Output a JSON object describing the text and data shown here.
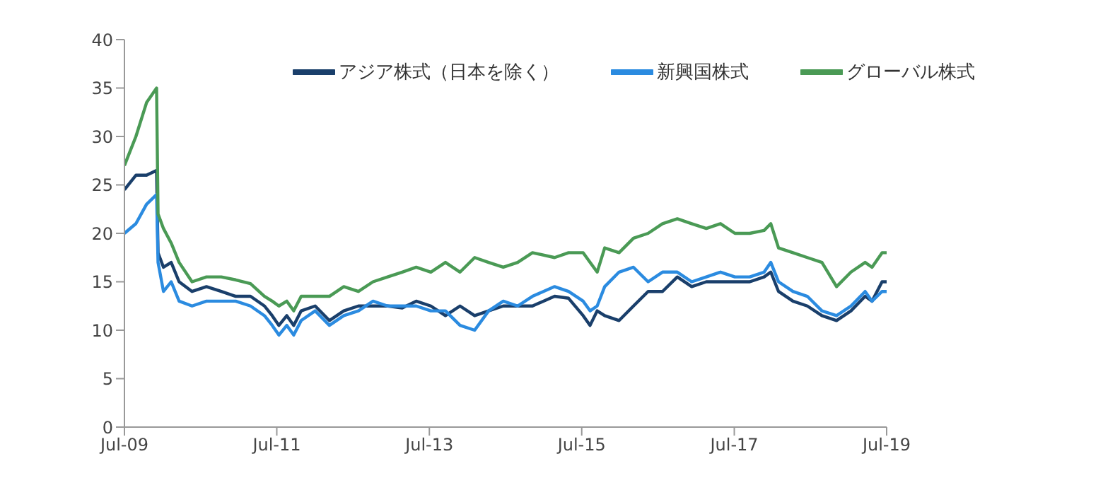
{
  "chart_data": {
    "type": "line",
    "x": [
      "2009-07-01",
      "2009-08-25",
      "2009-10-15",
      "2009-12-02",
      "2009-12-09",
      "2010-01-04",
      "2010-02-10",
      "2010-03-20",
      "2010-05-21",
      "2010-07-29",
      "2010-10-08",
      "2010-12-16",
      "2011-02-25",
      "2011-05-03",
      "2011-06-09",
      "2011-07-11",
      "2011-08-18",
      "2011-09-20",
      "2011-10-26",
      "2012-01-01",
      "2012-03-09",
      "2012-05-17",
      "2012-07-26",
      "2012-10-04",
      "2012-12-13",
      "2013-02-21",
      "2013-04-29",
      "2013-07-08",
      "2013-09-16",
      "2013-11-25",
      "2014-02-03",
      "2014-04-11",
      "2014-06-20",
      "2014-08-28",
      "2014-11-07",
      "2015-02-21",
      "2015-04-29",
      "2015-07-08",
      "2015-08-10",
      "2015-09-13",
      "2015-10-19",
      "2015-12-27",
      "2016-03-05",
      "2016-05-14",
      "2016-07-22",
      "2016-10-01",
      "2016-12-09",
      "2017-02-17",
      "2017-04-26",
      "2017-07-04",
      "2017-09-13",
      "2017-11-21",
      "2017-12-23",
      "2018-01-29",
      "2018-04-08",
      "2018-06-16",
      "2018-08-25",
      "2018-11-03",
      "2019-01-11",
      "2019-03-20",
      "2019-04-22",
      "2019-06-09",
      "2019-07-01"
    ],
    "series": [
      {
        "name": "アジア株式（日本を除く）",
        "color": "#1a3f6b",
        "values": [
          24.5,
          26,
          26,
          26.5,
          18,
          16.5,
          17,
          15,
          14,
          14.5,
          14,
          13.5,
          13.5,
          12.5,
          11.5,
          10.5,
          11.5,
          10.5,
          12,
          12.5,
          11,
          12,
          12.5,
          12.5,
          12.5,
          12.3,
          13,
          12.5,
          11.5,
          12.5,
          11.5,
          12,
          12.5,
          12.5,
          12.5,
          13.5,
          13.3,
          11.5,
          10.5,
          12,
          11.5,
          11,
          12.5,
          14,
          14,
          15.5,
          14.5,
          15,
          15,
          15,
          15,
          15.5,
          16,
          14,
          13,
          12.5,
          11.5,
          11,
          12,
          13.5,
          13,
          15,
          15
        ]
      },
      {
        "name": "新興国株式",
        "color": "#2b8be0",
        "values": [
          20,
          21,
          23,
          24,
          17,
          14,
          15,
          13,
          12.5,
          13,
          13,
          13,
          12.5,
          11.5,
          10.5,
          9.5,
          10.5,
          9.5,
          11,
          12,
          10.5,
          11.5,
          12,
          13,
          12.5,
          12.5,
          12.5,
          12,
          12,
          10.5,
          10,
          12,
          13,
          12.5,
          13.5,
          14.5,
          14,
          13,
          12,
          12.5,
          14.5,
          16,
          16.5,
          15,
          16,
          16,
          15,
          15.5,
          16,
          15.5,
          15.5,
          16,
          17,
          15,
          14,
          13.5,
          12,
          11.5,
          12.5,
          14,
          13,
          14,
          14
        ]
      },
      {
        "name": "グローバル株式",
        "color": "#4a9a55",
        "values": [
          27,
          30,
          33.5,
          35,
          22,
          20.5,
          19,
          17,
          15,
          15.5,
          15.5,
          15.2,
          14.8,
          13.5,
          13,
          12.5,
          13,
          12,
          13.5,
          13.5,
          13.5,
          14.5,
          14,
          15,
          15.5,
          16,
          16.5,
          16,
          17,
          16,
          17.5,
          17,
          16.5,
          17,
          18,
          17.5,
          18,
          18,
          17,
          16,
          18.5,
          18,
          19.5,
          20,
          21,
          21.5,
          21,
          20.5,
          21,
          20,
          20,
          20.3,
          21,
          18.5,
          18,
          17.5,
          17,
          14.5,
          16,
          17,
          16.5,
          18,
          18
        ]
      }
    ],
    "xlim": [
      "2009-07-01",
      "2019-07-01"
    ],
    "xticks": [
      {
        "value": "2009-07-01",
        "label": "Jul-09"
      },
      {
        "value": "2011-07-01",
        "label": "Jul-11"
      },
      {
        "value": "2013-07-01",
        "label": "Jul-13"
      },
      {
        "value": "2015-07-01",
        "label": "Jul-15"
      },
      {
        "value": "2017-07-01",
        "label": "Jul-17"
      },
      {
        "value": "2019-07-01",
        "label": "Jul-19"
      }
    ],
    "ylim": [
      0,
      40
    ],
    "yticks": [
      0,
      5,
      10,
      15,
      20,
      25,
      30,
      35,
      40
    ],
    "legend": "top",
    "marker": "none",
    "line_style": "solid"
  }
}
